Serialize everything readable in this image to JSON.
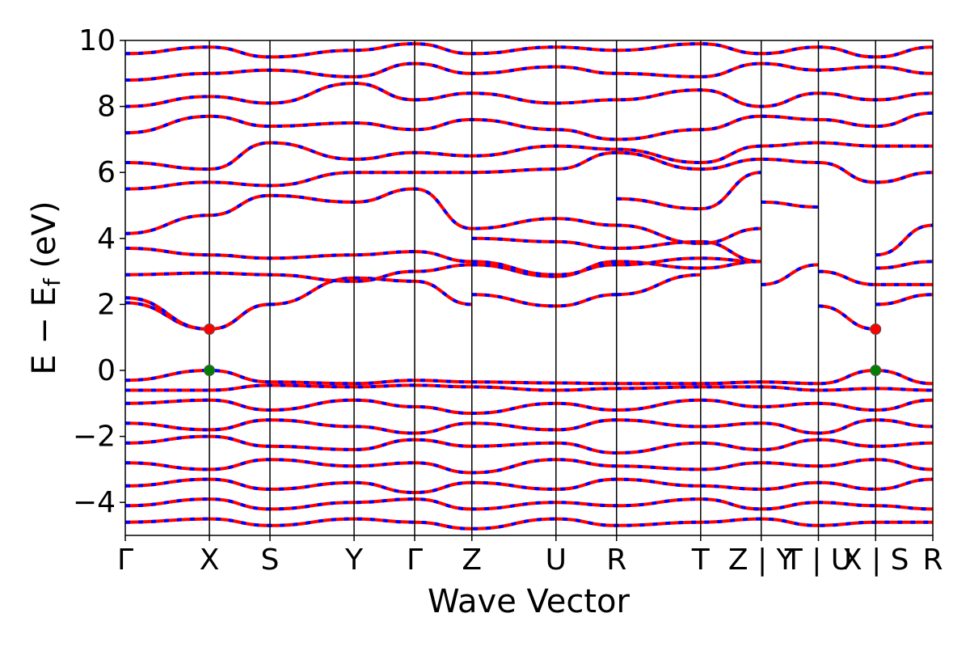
{
  "chart_data": {
    "type": "line",
    "title": "",
    "xlabel": "Wave Vector",
    "ylabel": {
      "main": "E − E",
      "subscript": "f",
      "unit": " (eV)"
    },
    "ylim": [
      -5,
      10
    ],
    "yticks": [
      -4,
      -2,
      0,
      2,
      4,
      6,
      8,
      10
    ],
    "ytick_labels": [
      "−4",
      "−2",
      "0",
      "2",
      "4",
      "6",
      "8",
      "10"
    ],
    "kpath": [
      {
        "label": "Γ",
        "x": 0.0
      },
      {
        "label": "X",
        "x": 1.0
      },
      {
        "label": "S",
        "x": 1.72
      },
      {
        "label": "Y",
        "x": 2.72
      },
      {
        "label": "Γ",
        "x": 3.44
      },
      {
        "label": "Z",
        "x": 4.12
      },
      {
        "label": "U",
        "x": 5.12
      },
      {
        "label": "R",
        "x": 5.84
      },
      {
        "label": "T",
        "x": 6.84
      },
      {
        "label": "Z | Y",
        "x": 7.56
      },
      {
        "label": "T | U",
        "x": 8.24
      },
      {
        "label": "X | S",
        "x": 8.92
      },
      {
        "label": "R",
        "x": 9.6
      }
    ],
    "grid": false,
    "legend": "none",
    "colors": {
      "spin_up": "#ff0000",
      "spin_down": "#0000ff",
      "cbm": "#ff0000",
      "vbm": "#008000",
      "segment_line": "#000000"
    },
    "markers": [
      {
        "name": "CBM",
        "color": "#ff0000",
        "points": [
          {
            "x": 1.0,
            "y": 1.25
          },
          {
            "x": 8.92,
            "y": 1.25
          }
        ]
      },
      {
        "name": "VBM",
        "color": "#008000",
        "points": [
          {
            "x": 1.0,
            "y": 0.0
          },
          {
            "x": 8.92,
            "y": 0.0
          }
        ]
      }
    ],
    "series": [
      {
        "style": "red-solid-blue-dashed",
        "x": [
          0,
          1.0,
          1.72
        ],
        "y": [
          2.05,
          1.25,
          2.0
        ]
      },
      {
        "style": "red-solid-blue-dashed",
        "x": [
          0,
          1.0,
          1.72
        ],
        "y": [
          2.2,
          1.25,
          2.0
        ]
      },
      {
        "style": "red-solid-blue-dashed",
        "x": [
          1.72,
          2.72,
          3.44,
          4.12
        ],
        "y": [
          2.0,
          2.8,
          2.7,
          2.0
        ]
      },
      {
        "style": "red-solid-blue-dashed",
        "x": [
          4.12,
          5.12,
          5.84
        ],
        "y": [
          2.3,
          1.95,
          2.3
        ]
      },
      {
        "style": "red-solid-blue-dashed",
        "x": [
          5.84,
          6.84
        ],
        "y": [
          2.3,
          2.9
        ]
      },
      {
        "style": "red-solid-blue-dashed",
        "x": [
          7.56,
          8.24
        ],
        "y": [
          2.6,
          3.2
        ]
      },
      {
        "style": "red-solid-blue-dashed",
        "x": [
          8.24,
          8.92
        ],
        "y": [
          1.95,
          1.25
        ]
      },
      {
        "style": "red-solid-blue-dashed",
        "x": [
          8.92,
          9.6
        ],
        "y": [
          2.0,
          2.3
        ]
      },
      {
        "style": "red-solid-blue-dashed",
        "x": [
          0,
          1.0,
          1.72,
          2.72,
          3.44,
          4.12,
          5.12,
          5.84,
          6.84,
          7.56
        ],
        "y": [
          2.9,
          2.95,
          2.9,
          2.7,
          3.0,
          3.2,
          2.85,
          3.3,
          3.1,
          3.3
        ]
      },
      {
        "style": "red-solid-blue-dashed",
        "x": [
          0,
          1.0,
          1.72,
          2.72,
          3.44,
          4.12,
          5.12,
          5.84,
          6.84,
          7.56
        ],
        "y": [
          3.7,
          3.5,
          3.4,
          3.5,
          3.6,
          3.3,
          2.9,
          3.2,
          3.4,
          3.3
        ]
      },
      {
        "style": "red-solid-blue-dashed",
        "x": [
          0,
          1.0,
          1.72,
          2.72,
          3.44,
          4.12,
          5.12,
          5.84,
          6.84,
          7.56
        ],
        "y": [
          4.15,
          4.7,
          5.3,
          5.1,
          5.5,
          4.3,
          4.6,
          4.4,
          3.85,
          4.3
        ]
      },
      {
        "style": "red-solid-blue-dashed",
        "x": [
          4.12,
          5.12,
          5.84,
          6.84,
          7.56
        ],
        "y": [
          4.0,
          3.9,
          3.7,
          3.9,
          3.3
        ]
      },
      {
        "style": "red-solid-blue-dashed",
        "x": [
          5.84,
          6.84,
          7.56
        ],
        "y": [
          5.2,
          4.9,
          6.0
        ]
      },
      {
        "style": "red-solid-blue-dashed",
        "x": [
          7.56,
          8.24
        ],
        "y": [
          5.1,
          4.95
        ]
      },
      {
        "style": "red-solid-blue-dashed",
        "x": [
          8.24,
          8.92,
          9.6
        ],
        "y": [
          3.0,
          2.6,
          2.6
        ]
      },
      {
        "style": "red-solid-blue-dashed",
        "x": [
          8.92,
          9.6
        ],
        "y": [
          3.5,
          4.4
        ]
      },
      {
        "style": "red-solid-blue-dashed",
        "x": [
          8.92,
          9.6
        ],
        "y": [
          3.1,
          3.3
        ]
      },
      {
        "style": "red-solid-blue-dashed",
        "x": [
          0,
          1.0,
          1.72,
          2.72,
          3.44,
          4.12,
          5.12,
          5.84,
          6.84,
          7.56,
          8.24,
          8.92,
          9.6
        ],
        "y": [
          5.5,
          5.7,
          5.6,
          6.0,
          6.0,
          6.0,
          6.1,
          6.6,
          6.1,
          6.4,
          6.3,
          5.7,
          6.0
        ]
      },
      {
        "style": "red-solid-blue-dashed",
        "x": [
          0,
          1.0,
          1.72,
          2.72,
          3.44,
          4.12,
          5.12,
          5.84,
          6.84,
          7.56,
          8.24,
          8.92,
          9.6
        ],
        "y": [
          6.3,
          6.1,
          6.9,
          6.4,
          6.6,
          6.5,
          6.8,
          6.7,
          6.3,
          6.8,
          6.9,
          6.8,
          6.8
        ]
      },
      {
        "style": "red-solid-blue-dashed",
        "x": [
          0,
          1.0,
          1.72,
          2.72,
          3.44,
          4.12,
          5.12,
          5.84,
          6.84,
          7.56,
          8.24,
          8.92,
          9.6
        ],
        "y": [
          7.2,
          7.7,
          7.4,
          7.5,
          7.3,
          7.6,
          7.3,
          7.0,
          7.3,
          7.7,
          7.6,
          7.4,
          7.8
        ]
      },
      {
        "style": "red-solid-blue-dashed",
        "x": [
          0,
          1.0,
          1.72,
          2.72,
          3.44,
          4.12,
          5.12,
          5.84,
          6.84,
          7.56,
          8.24,
          8.92,
          9.6
        ],
        "y": [
          8.0,
          8.3,
          8.1,
          8.7,
          8.2,
          8.4,
          8.1,
          8.2,
          8.5,
          8.0,
          8.4,
          8.2,
          8.4
        ]
      },
      {
        "style": "red-solid-blue-dashed",
        "x": [
          0,
          1.0,
          1.72,
          2.72,
          3.44,
          4.12,
          5.12,
          5.84,
          6.84,
          7.56,
          8.24,
          8.92,
          9.6
        ],
        "y": [
          8.8,
          9.0,
          9.1,
          8.9,
          9.3,
          9.0,
          9.2,
          9.0,
          8.9,
          9.3,
          9.1,
          9.2,
          9.0
        ]
      },
      {
        "style": "red-solid-blue-dashed",
        "x": [
          0,
          1.0,
          1.72,
          2.72,
          3.44,
          4.12,
          5.12,
          5.84,
          6.84,
          7.56,
          8.24,
          8.92,
          9.6
        ],
        "y": [
          9.6,
          9.8,
          9.5,
          9.7,
          9.9,
          9.6,
          9.8,
          9.7,
          9.9,
          9.6,
          9.8,
          9.5,
          9.8
        ]
      },
      {
        "style": "red-solid-blue-dashed",
        "x": [
          0,
          1.0,
          1.72,
          2.72,
          3.44,
          4.12,
          5.12,
          5.84,
          6.84,
          7.56,
          8.24,
          8.92,
          9.6
        ],
        "y": [
          -0.3,
          0.0,
          -0.35,
          -0.4,
          -0.3,
          -0.35,
          -0.38,
          -0.4,
          -0.4,
          -0.35,
          -0.4,
          0.0,
          -0.4
        ]
      },
      {
        "style": "red-solid-blue-dashed",
        "x": [
          0,
          1.0,
          1.72,
          2.72,
          3.44,
          4.12,
          5.12,
          5.84,
          6.84,
          7.56,
          8.24,
          8.92,
          9.6
        ],
        "y": [
          -0.6,
          -0.6,
          -0.45,
          -0.5,
          -0.45,
          -0.5,
          -0.6,
          -0.55,
          -0.5,
          -0.5,
          -0.6,
          -0.55,
          -0.6
        ]
      },
      {
        "style": "red-solid-blue-dashed",
        "x": [
          0,
          1.0,
          1.72,
          2.72,
          3.44,
          4.12,
          5.12,
          5.84,
          6.84,
          7.56,
          8.24,
          8.92,
          9.6
        ],
        "y": [
          -1.0,
          -0.9,
          -1.2,
          -0.9,
          -1.1,
          -1.3,
          -1.0,
          -1.2,
          -0.9,
          -1.1,
          -1.0,
          -1.2,
          -0.9
        ]
      },
      {
        "style": "red-solid-blue-dashed",
        "x": [
          0,
          1.0,
          1.72,
          2.72,
          3.44,
          4.12,
          5.12,
          5.84,
          6.84,
          7.56,
          8.24,
          8.92,
          9.6
        ],
        "y": [
          -1.6,
          -1.8,
          -1.5,
          -1.7,
          -1.9,
          -1.6,
          -1.8,
          -1.5,
          -1.7,
          -1.6,
          -1.9,
          -1.5,
          -1.7
        ]
      },
      {
        "style": "red-solid-blue-dashed",
        "x": [
          0,
          1.0,
          1.72,
          2.72,
          3.44,
          4.12,
          5.12,
          5.84,
          6.84,
          7.56,
          8.24,
          8.92,
          9.6
        ],
        "y": [
          -2.2,
          -2.0,
          -2.3,
          -2.4,
          -2.1,
          -2.3,
          -2.2,
          -2.5,
          -2.2,
          -2.4,
          -2.1,
          -2.3,
          -2.2
        ]
      },
      {
        "style": "red-solid-blue-dashed",
        "x": [
          0,
          1.0,
          1.72,
          2.72,
          3.44,
          4.12,
          5.12,
          5.84,
          6.84,
          7.56,
          8.24,
          8.92,
          9.6
        ],
        "y": [
          -2.8,
          -3.0,
          -2.7,
          -2.9,
          -2.8,
          -3.1,
          -2.7,
          -2.9,
          -3.0,
          -2.8,
          -2.9,
          -2.7,
          -3.0
        ]
      },
      {
        "style": "red-solid-blue-dashed",
        "x": [
          0,
          1.0,
          1.72,
          2.72,
          3.44,
          4.12,
          5.12,
          5.84,
          6.84,
          7.56,
          8.24,
          8.92,
          9.6
        ],
        "y": [
          -3.5,
          -3.3,
          -3.6,
          -3.4,
          -3.7,
          -3.4,
          -3.6,
          -3.3,
          -3.5,
          -3.6,
          -3.4,
          -3.6,
          -3.3
        ]
      },
      {
        "style": "red-solid-blue-dashed",
        "x": [
          0,
          1.0,
          1.72,
          2.72,
          3.44,
          4.12,
          5.12,
          5.84,
          6.84,
          7.56,
          8.24,
          8.92,
          9.6
        ],
        "y": [
          -4.1,
          -3.9,
          -4.2,
          -4.0,
          -3.9,
          -4.2,
          -4.0,
          -4.1,
          -3.9,
          -4.2,
          -4.0,
          -4.1,
          -4.2
        ]
      },
      {
        "style": "red-solid-blue-dashed",
        "x": [
          0,
          1.0,
          1.72,
          2.72,
          3.44,
          4.12,
          5.12,
          5.84,
          6.84,
          7.56,
          8.24,
          8.92,
          9.6
        ],
        "y": [
          -4.6,
          -4.5,
          -4.7,
          -4.5,
          -4.6,
          -4.8,
          -4.5,
          -4.7,
          -4.6,
          -4.5,
          -4.7,
          -4.6,
          -4.6
        ]
      }
    ]
  }
}
